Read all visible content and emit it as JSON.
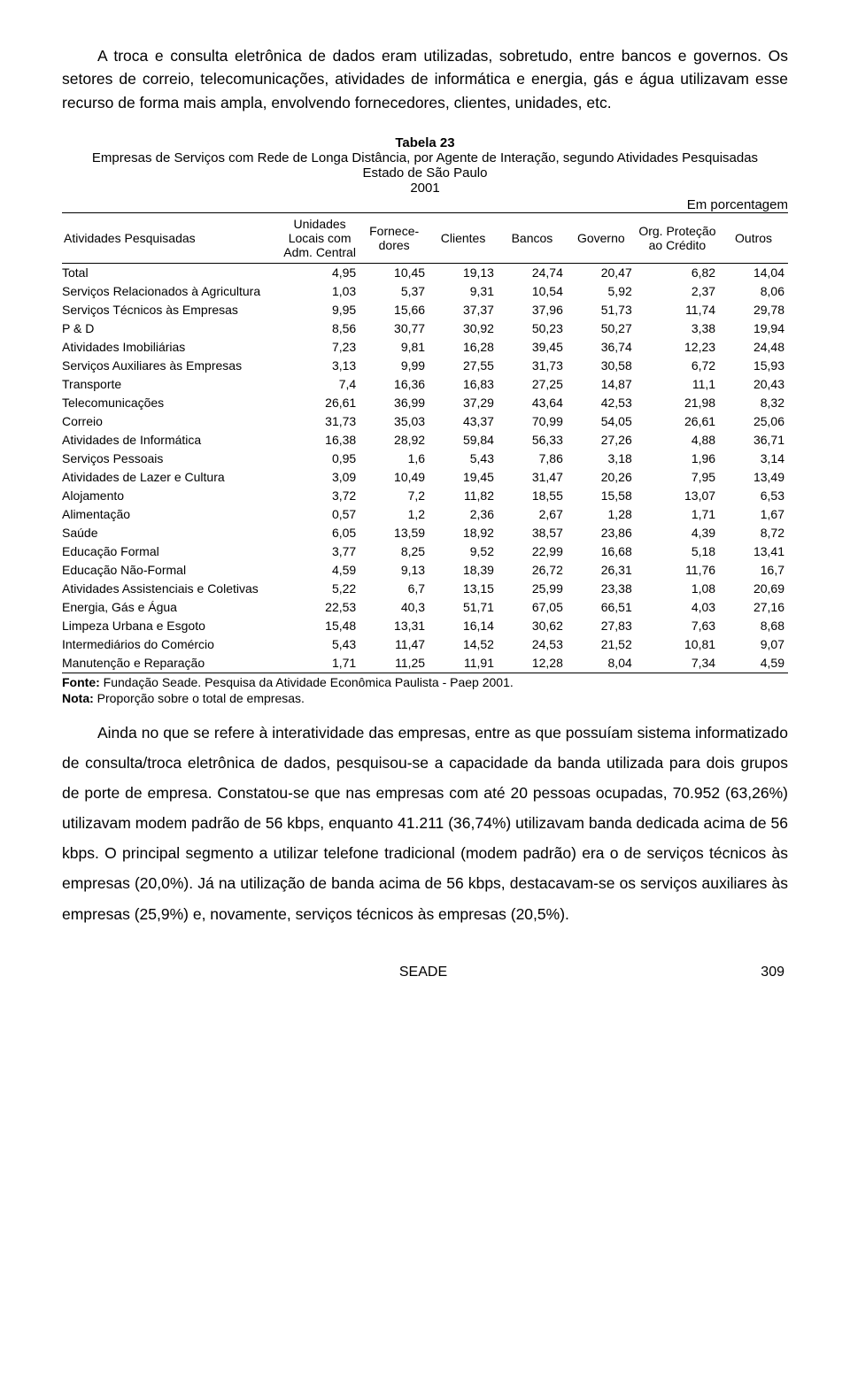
{
  "intro": {
    "p1": "A troca e consulta eletrônica de dados eram utilizadas, sobretudo, entre bancos e governos. Os setores de correio, telecomunicações, atividades de informática e energia, gás e água utilizavam esse recurso de forma mais ampla, envolvendo fornecedores, clientes, unidades, etc."
  },
  "table": {
    "title": "Tabela 23",
    "subtitle1": "Empresas de Serviços com Rede de Longa Distância, por Agente de Interação, segundo Atividades Pesquisadas",
    "subtitle2": "Estado de São Paulo",
    "subtitle3": "2001",
    "unit_label": "Em porcentagem",
    "columns": [
      "Atividades Pesquisadas",
      "Unidades Locais com Adm. Central",
      "Fornece-dores",
      "Clientes",
      "Bancos",
      "Governo",
      "Org. Proteção ao Crédito",
      "Outros"
    ],
    "col_widths": [
      "30%",
      "11%",
      "9.5%",
      "9.5%",
      "9.5%",
      "9.5%",
      "11.5%",
      "9.5%"
    ],
    "rows": [
      [
        "Total",
        "4,95",
        "10,45",
        "19,13",
        "24,74",
        "20,47",
        "6,82",
        "14,04"
      ],
      [
        "Serviços Relacionados à Agricultura",
        "1,03",
        "5,37",
        "9,31",
        "10,54",
        "5,92",
        "2,37",
        "8,06"
      ],
      [
        "Serviços Técnicos às Empresas",
        "9,95",
        "15,66",
        "37,37",
        "37,96",
        "51,73",
        "11,74",
        "29,78"
      ],
      [
        "P & D",
        "8,56",
        "30,77",
        "30,92",
        "50,23",
        "50,27",
        "3,38",
        "19,94"
      ],
      [
        "Atividades Imobiliárias",
        "7,23",
        "9,81",
        "16,28",
        "39,45",
        "36,74",
        "12,23",
        "24,48"
      ],
      [
        "Serviços Auxiliares às Empresas",
        "3,13",
        "9,99",
        "27,55",
        "31,73",
        "30,58",
        "6,72",
        "15,93"
      ],
      [
        "Transporte",
        "7,4",
        "16,36",
        "16,83",
        "27,25",
        "14,87",
        "11,1",
        "20,43"
      ],
      [
        "Telecomunicações",
        "26,61",
        "36,99",
        "37,29",
        "43,64",
        "42,53",
        "21,98",
        "8,32"
      ],
      [
        "Correio",
        "31,73",
        "35,03",
        "43,37",
        "70,99",
        "54,05",
        "26,61",
        "25,06"
      ],
      [
        "Atividades de Informática",
        "16,38",
        "28,92",
        "59,84",
        "56,33",
        "27,26",
        "4,88",
        "36,71"
      ],
      [
        "Serviços Pessoais",
        "0,95",
        "1,6",
        "5,43",
        "7,86",
        "3,18",
        "1,96",
        "3,14"
      ],
      [
        "Atividades de Lazer e Cultura",
        "3,09",
        "10,49",
        "19,45",
        "31,47",
        "20,26",
        "7,95",
        "13,49"
      ],
      [
        "Alojamento",
        "3,72",
        "7,2",
        "11,82",
        "18,55",
        "15,58",
        "13,07",
        "6,53"
      ],
      [
        "Alimentação",
        "0,57",
        "1,2",
        "2,36",
        "2,67",
        "1,28",
        "1,71",
        "1,67"
      ],
      [
        "Saúde",
        "6,05",
        "13,59",
        "18,92",
        "38,57",
        "23,86",
        "4,39",
        "8,72"
      ],
      [
        "Educação Formal",
        "3,77",
        "8,25",
        "9,52",
        "22,99",
        "16,68",
        "5,18",
        "13,41"
      ],
      [
        "Educação Não-Formal",
        "4,59",
        "9,13",
        "18,39",
        "26,72",
        "26,31",
        "11,76",
        "16,7"
      ],
      [
        "Atividades Assistenciais e Coletivas",
        "5,22",
        "6,7",
        "13,15",
        "25,99",
        "23,38",
        "1,08",
        "20,69"
      ],
      [
        "Energia, Gás e Água",
        "22,53",
        "40,3",
        "51,71",
        "67,05",
        "66,51",
        "4,03",
        "27,16"
      ],
      [
        "Limpeza Urbana e Esgoto",
        "15,48",
        "13,31",
        "16,14",
        "30,62",
        "27,83",
        "7,63",
        "8,68"
      ],
      [
        "Intermediários do Comércio",
        "5,43",
        "11,47",
        "14,52",
        "24,53",
        "21,52",
        "10,81",
        "9,07"
      ],
      [
        "Manutenção e Reparação",
        "1,71",
        "11,25",
        "11,91",
        "12,28",
        "8,04",
        "7,34",
        "4,59"
      ]
    ],
    "source_label": "Fonte:",
    "source_text": " Fundação Seade. Pesquisa da Atividade Econômica Paulista - Paep 2001.",
    "note_label": "Nota:",
    "note_text": " Proporção sobre o total de empresas."
  },
  "body": {
    "p1": "Ainda no que se refere à interatividade das empresas, entre as que possuíam sistema informatizado de consulta/troca eletrônica de dados, pesquisou-se a capacidade da banda utilizada para dois grupos de porte de empresa. Constatou-se que nas empresas com até 20 pessoas ocupadas, 70.952 (63,26%) utilizavam modem padrão de 56 kbps, enquanto 41.211 (36,74%) utilizavam banda dedicada acima de 56 kbps. O principal segmento a utilizar telefone tradicional (modem padrão) era o de serviços técnicos às empresas (20,0%). Já na utilização de banda acima de 56 kbps, destacavam-se os serviços auxiliares às empresas (25,9%) e, novamente, serviços técnicos às empresas (20,5%)."
  },
  "footer": {
    "center": "SEADE",
    "page": "309"
  }
}
